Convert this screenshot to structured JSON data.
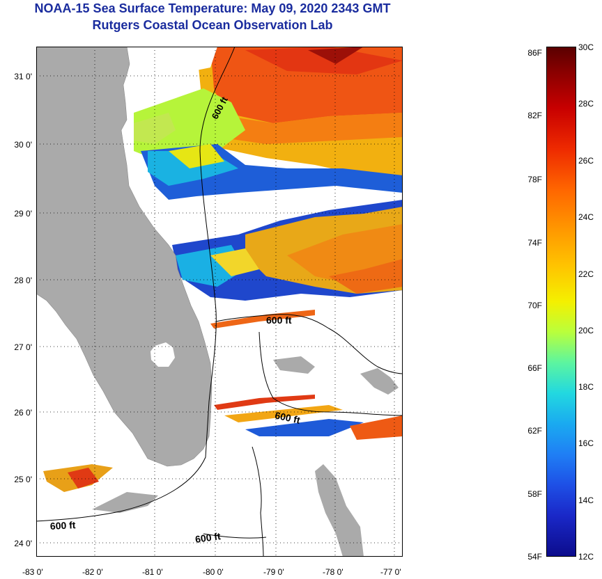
{
  "title_line1": "NOAA-15 Sea Surface Temperature:  May 09, 2020 2343 GMT",
  "title_line2": "Rutgers Coastal Ocean Observation Lab",
  "lat_ticks": [
    "31 0'",
    "30 0'",
    "29 0'",
    "28 0'",
    "27 0'",
    "26 0'",
    "25 0'",
    "24 0'"
  ],
  "lon_ticks": [
    "-83 0'",
    "-82 0'",
    "-81 0'",
    "-80 0'",
    "-79 0'",
    "-78 0'",
    "-77 0'"
  ],
  "isobath_labels": [
    "600 ft",
    "600 ft",
    "600 ft",
    "600 ft",
    "600 ft"
  ],
  "colorbar": {
    "fahrenheit": [
      "86F",
      "82F",
      "78F",
      "74F",
      "70F",
      "66F",
      "62F",
      "58F",
      "54F"
    ],
    "celsius": [
      "30C",
      "28C",
      "26C",
      "24C",
      "22C",
      "20C",
      "18C",
      "16C",
      "14C",
      "12C"
    ]
  },
  "colors": {
    "title": "#1a2c9e",
    "land": "#aaaaaa",
    "cloud": "#ffffff"
  }
}
